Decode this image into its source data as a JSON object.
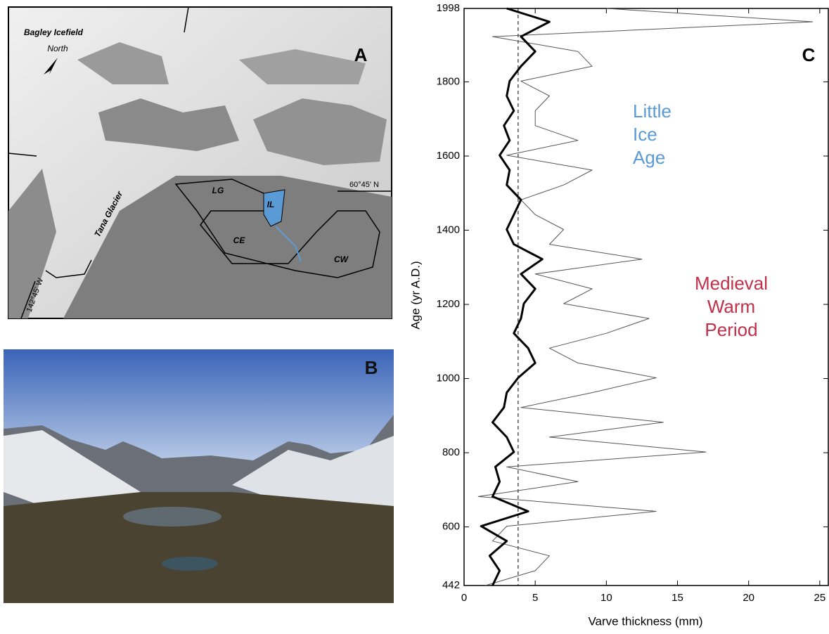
{
  "panel_a": {
    "label": "A",
    "icefield": "Bagley Icefield",
    "north": "North",
    "glacier": "Tana Glacier",
    "lat": "60°45' N",
    "lon": "142°45' W",
    "sites": [
      "LG",
      "IL",
      "CE",
      "CW"
    ]
  },
  "panel_b": {
    "label": "B"
  },
  "chart_data": {
    "type": "line",
    "panel_label": "C",
    "x_label": "Varve thickness (mm)",
    "y_label": "Age (yr A.D.)",
    "xlim": [
      0,
      25.6
    ],
    "xticks": [
      0,
      5,
      10,
      15,
      20,
      25
    ],
    "ylim": [
      442,
      1998
    ],
    "yticks": [
      442,
      600,
      800,
      1000,
      1200,
      1400,
      1600,
      1800,
      1998
    ],
    "reference_x": 3.8,
    "ages": [
      442,
      482,
      522,
      562,
      602,
      642,
      682,
      722,
      762,
      802,
      842,
      882,
      922,
      962,
      1002,
      1042,
      1082,
      1122,
      1162,
      1202,
      1242,
      1282,
      1322,
      1362,
      1402,
      1442,
      1482,
      1522,
      1562,
      1602,
      1642,
      1682,
      1722,
      1762,
      1802,
      1842,
      1882,
      1922,
      1962,
      1998
    ],
    "series": [
      {
        "color": "#555555",
        "values": [
          1.5,
          5,
          6,
          2,
          3,
          13.5,
          1,
          8,
          3,
          17,
          6,
          14,
          4,
          9,
          13.5,
          8,
          6,
          10,
          13,
          7,
          9,
          5,
          12.5,
          6,
          7,
          5,
          4,
          7,
          9,
          3,
          8,
          5,
          5,
          6,
          4,
          9,
          8,
          2,
          24.5,
          10
        ]
      },
      {
        "color": "#000000",
        "values": [
          2,
          2.5,
          1.8,
          3,
          1.2,
          4.5,
          2,
          2.5,
          2.2,
          3.5,
          3,
          2,
          2.8,
          3,
          3.8,
          5,
          4.5,
          3.5,
          4,
          4.2,
          5,
          4,
          5.5,
          3.5,
          3,
          3.5,
          4,
          3,
          3.2,
          2.5,
          3.2,
          2.8,
          3.5,
          3,
          3.2,
          4,
          5,
          4,
          6,
          3
        ]
      }
    ],
    "annotations": [
      {
        "lines": [
          "Little",
          "Ice",
          "Age"
        ],
        "color": "#5b9bd5"
      },
      {
        "lines": [
          "Medieval",
          "Warm",
          "Period"
        ],
        "color": "#c0304a"
      }
    ]
  }
}
